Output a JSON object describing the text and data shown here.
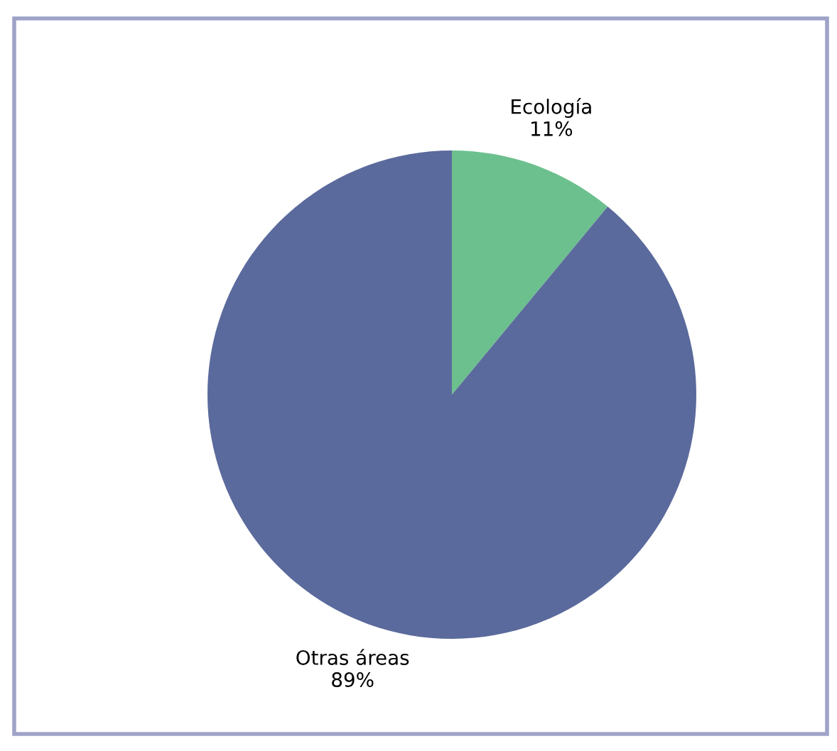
{
  "chart_data": {
    "type": "pie",
    "categories": [
      "Ecología",
      "Otras áreas"
    ],
    "values": [
      11,
      89
    ],
    "colors": [
      "#6cc08e",
      "#5b6a9c"
    ],
    "value_labels": [
      "11%",
      "89%"
    ],
    "legend": false
  }
}
